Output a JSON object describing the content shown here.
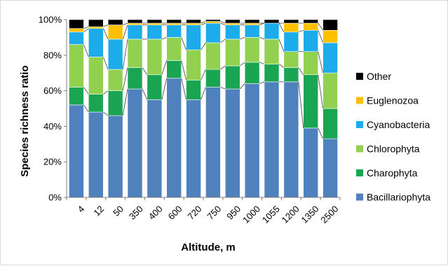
{
  "chart_data": {
    "type": "bar",
    "stacked": true,
    "normalized": true,
    "connector_lines": true,
    "xlabel": "Altitude, m",
    "ylabel": "Species richness ratio",
    "ylim": [
      0,
      100
    ],
    "yticks": [
      "0%",
      "20%",
      "40%",
      "60%",
      "80%",
      "100%"
    ],
    "grid": false,
    "legend_position": "right",
    "categories": [
      "4",
      "12",
      "50",
      "350",
      "400",
      "600",
      "720",
      "750",
      "950",
      "1000",
      "1055",
      "1200",
      "1350",
      "2500"
    ],
    "series": [
      {
        "name": "Bacillariophyta",
        "color": "#4F81BD",
        "values": [
          52,
          48,
          46,
          61,
          55,
          67,
          55,
          62,
          61,
          64,
          65,
          65,
          39,
          33
        ]
      },
      {
        "name": "Charophyta",
        "color": "#1AA553",
        "values": [
          10,
          10,
          14,
          12,
          14,
          10,
          11,
          10,
          13,
          12,
          10,
          8,
          30,
          17
        ]
      },
      {
        "name": "Chlorophyta",
        "color": "#92D050",
        "values": [
          24,
          21,
          12,
          16,
          20,
          13,
          17,
          15,
          15,
          14,
          14,
          9,
          13,
          20
        ]
      },
      {
        "name": "Cyanobacteria",
        "color": "#1CACEC",
        "values": [
          7,
          16,
          17,
          8,
          8,
          7,
          14,
          11,
          8,
          7,
          9,
          11,
          12,
          17
        ]
      },
      {
        "name": "Euglenozoa",
        "color": "#FFC000",
        "values": [
          2,
          1,
          8,
          1,
          1,
          1,
          1,
          1,
          1,
          1,
          0,
          5,
          4,
          7
        ]
      },
      {
        "name": "Other",
        "color": "#000000",
        "values": [
          5,
          4,
          3,
          2,
          2,
          2,
          2,
          1,
          2,
          2,
          2,
          2,
          2,
          6
        ]
      }
    ]
  }
}
